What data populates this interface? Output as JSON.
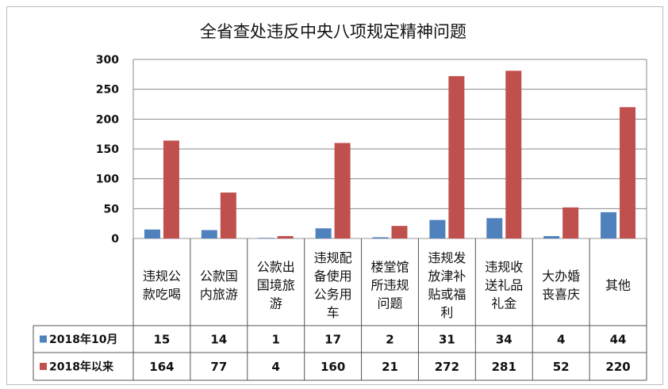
{
  "chart_data": {
    "type": "bar",
    "title": "全省查处违反中央八项规定精神问题",
    "ylim": [
      0,
      300
    ],
    "yticks": [
      0,
      50,
      100,
      150,
      200,
      250,
      300
    ],
    "grid": true,
    "categories": [
      [
        "违规公",
        "款吃喝"
      ],
      [
        "公款国",
        "内旅游"
      ],
      [
        "公款出",
        "国境旅",
        "游"
      ],
      [
        "违规配",
        "备使用",
        "公务用",
        "车"
      ],
      [
        "楼堂馆",
        "所违规",
        "问题"
      ],
      [
        "违规发",
        "放津补",
        "贴或福",
        "利"
      ],
      [
        "违规收",
        "送礼品",
        "礼金"
      ],
      [
        "大办婚",
        "丧喜庆"
      ],
      [
        "其他"
      ]
    ],
    "series": [
      {
        "name": "2018年10月",
        "color": "#4f81bd",
        "values": [
          15,
          14,
          1,
          17,
          2,
          31,
          34,
          4,
          44
        ]
      },
      {
        "name": "2018年以来",
        "color": "#c0504d",
        "values": [
          164,
          77,
          4,
          160,
          21,
          272,
          281,
          52,
          220
        ]
      }
    ]
  }
}
